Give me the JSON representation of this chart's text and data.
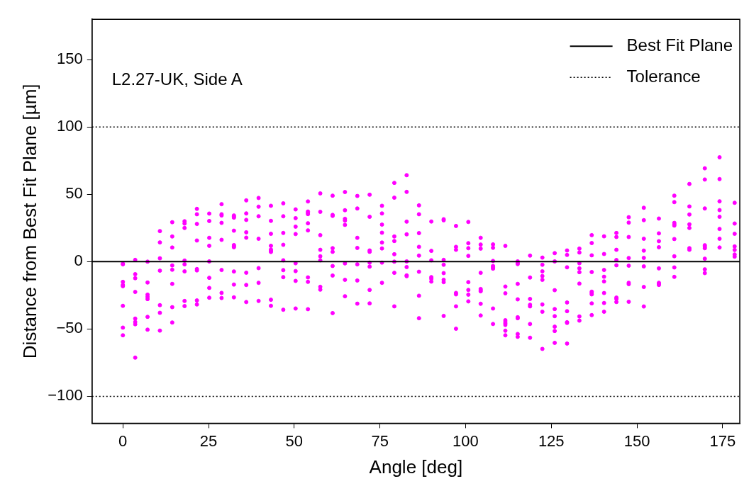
{
  "chart_data": {
    "type": "scatter",
    "xlabel": "Angle [deg]",
    "ylabel": "Distance from Best Fit Plane [µm]",
    "annotations": [
      "L2.27-UK, Side A"
    ],
    "xlim": [
      -9,
      180
    ],
    "xticks": [
      0,
      25,
      50,
      75,
      100,
      125,
      150,
      175
    ],
    "ylim": [
      -120,
      180
    ],
    "yticks": [
      {
        "value": -100,
        "label": "−100"
      },
      {
        "value": -50,
        "label": "−50"
      },
      0,
      50,
      100,
      150
    ],
    "grid": false,
    "legend": "top right",
    "marker": "circle",
    "ref_lines": [
      {
        "axis": "y",
        "value": 0,
        "label": "Best Fit Plane",
        "color": "#000000",
        "line_style": "solid"
      },
      {
        "axis": "y",
        "value": 100,
        "label": "Tolerance",
        "color": "#000000",
        "line_style": "dotted"
      },
      {
        "axis": "y",
        "value": -100,
        "color": "#000000",
        "line_style": "dotted"
      }
    ],
    "series": [
      {
        "color": "#ff00ff",
        "x": [
          0,
          0,
          0,
          0,
          0,
          0,
          0,
          0,
          3.6,
          3.6,
          3.6,
          3.6,
          3.6,
          3.6,
          3.6,
          3.6,
          7.2,
          7.2,
          7.2,
          7.2,
          7.2,
          7.2,
          7.2,
          10.8,
          10.8,
          10.8,
          10.8,
          10.8,
          10.8,
          10.8,
          14.4,
          14.4,
          14.4,
          14.4,
          14.4,
          14.4,
          14.4,
          14.4,
          18,
          18,
          18,
          18,
          18,
          18,
          18,
          18,
          21.6,
          21.6,
          21.6,
          21.6,
          21.6,
          21.6,
          21.6,
          21.6,
          25.2,
          25.2,
          25.2,
          25.2,
          25.2,
          25.2,
          25.2,
          25.2,
          28.8,
          28.8,
          28.8,
          28.8,
          28.8,
          28.8,
          28.8,
          28.8,
          32.4,
          32.4,
          32.4,
          32.4,
          32.4,
          32.4,
          32.4,
          32.4,
          32.4,
          32.4,
          36,
          36,
          36,
          36,
          36,
          36,
          36,
          36,
          39.6,
          39.6,
          39.6,
          39.6,
          39.6,
          39.6,
          39.6,
          43.2,
          43.2,
          43.2,
          43.2,
          43.2,
          43.2,
          43.2,
          43.2,
          43.2,
          46.8,
          46.8,
          46.8,
          46.8,
          46.8,
          46.8,
          46.8,
          46.8,
          50.4,
          50.4,
          50.4,
          50.4,
          50.4,
          50.4,
          50.4,
          50.4,
          54,
          54,
          54,
          54,
          54,
          54,
          54,
          54,
          54,
          57.6,
          57.6,
          57.6,
          57.6,
          57.6,
          57.6,
          57.6,
          57.6,
          61.2,
          61.2,
          61.2,
          61.2,
          61.2,
          61.2,
          61.2,
          61.2,
          64.8,
          64.8,
          64.8,
          64.8,
          64.8,
          64.8,
          64.8,
          64.8,
          68.4,
          68.4,
          68.4,
          68.4,
          68.4,
          68.4,
          68.4,
          72,
          72,
          72,
          72,
          72,
          72,
          72,
          72,
          75.6,
          75.6,
          75.6,
          75.6,
          75.6,
          75.6,
          75.6,
          75.6,
          79.2,
          79.2,
          79.2,
          79.2,
          79.2,
          79.2,
          79.2,
          79.2,
          82.8,
          82.8,
          82.8,
          82.8,
          82.8,
          82.8,
          82.8,
          82.8,
          86.4,
          86.4,
          86.4,
          86.4,
          86.4,
          86.4,
          86.4,
          86.4,
          90,
          90,
          90,
          90,
          90,
          90,
          93.6,
          93.6,
          93.6,
          93.6,
          93.6,
          93.6,
          93.6,
          93.6,
          97.2,
          97.2,
          97.2,
          97.2,
          97.2,
          97.2,
          97.2,
          100.8,
          100.8,
          100.8,
          100.8,
          100.8,
          100.8,
          100.8,
          100.8,
          104.4,
          104.4,
          104.4,
          104.4,
          104.4,
          104.4,
          104.4,
          104.4,
          104.4,
          108,
          108,
          108,
          108,
          108,
          108,
          108,
          108,
          111.6,
          111.6,
          111.6,
          111.6,
          111.6,
          111.6,
          111.6,
          111.6,
          111.6,
          115.2,
          115.2,
          115.2,
          115.2,
          115.2,
          115.2,
          115.2,
          115.2,
          115.2,
          118.8,
          118.8,
          118.8,
          118.8,
          118.8,
          118.8,
          118.8,
          122.4,
          122.4,
          122.4,
          122.4,
          122.4,
          122.4,
          122.4,
          122.4,
          126,
          126,
          126,
          126,
          126,
          126,
          126,
          126,
          129.6,
          129.6,
          129.6,
          129.6,
          129.6,
          129.6,
          129.6,
          129.6,
          133.2,
          133.2,
          133.2,
          133.2,
          133.2,
          133.2,
          133.2,
          133.2,
          136.8,
          136.8,
          136.8,
          136.8,
          136.8,
          136.8,
          136.8,
          136.8,
          136.8,
          140.4,
          140.4,
          140.4,
          140.4,
          140.4,
          140.4,
          140.4,
          140.4,
          144,
          144,
          144,
          144,
          144,
          144,
          144,
          144,
          147.6,
          147.6,
          147.6,
          147.6,
          147.6,
          147.6,
          147.6,
          147.6,
          152,
          152,
          152,
          152,
          152,
          152,
          152,
          152,
          156.4,
          156.4,
          156.4,
          156.4,
          156.4,
          156.4,
          156.4,
          156.4,
          160.9,
          160.9,
          160.9,
          160.9,
          160.9,
          160.9,
          160.9,
          160.9,
          160.9,
          165.3,
          165.3,
          165.3,
          165.3,
          165.3,
          165.3,
          165.3,
          169.8,
          169.8,
          169.8,
          169.8,
          169.8,
          169.8,
          169.8,
          169.8,
          169.8,
          174.1,
          174.1,
          174.1,
          174.1,
          174.1,
          174.1,
          174.1,
          174.1,
          178.5,
          178.5,
          178.5,
          178.5,
          178.5,
          178.5,
          178.5
        ],
        "values": [
          -1.5,
          -2,
          -15,
          -17.3,
          -18.2,
          -32.8,
          -49,
          -54.7,
          1.3,
          -9.3,
          -12.3,
          -22.5,
          -42.3,
          -44.8,
          -46.5,
          -71.3,
          0,
          -15.5,
          -24.5,
          -26.2,
          -27.8,
          -41,
          -50.5,
          22.7,
          14.3,
          2.5,
          -6.7,
          -32.3,
          -38,
          -51.2,
          29.3,
          18.7,
          10.5,
          -2.8,
          -6,
          -16.5,
          -33.8,
          -45.2,
          30,
          28.3,
          25,
          0.8,
          -2,
          -7.2,
          -29.2,
          -33,
          39.2,
          35.2,
          28,
          15.7,
          -5.5,
          -6.5,
          -28.8,
          -31.8,
          35.7,
          30.2,
          17.7,
          11.8,
          0.2,
          -12,
          -19.5,
          -26.8,
          42.7,
          35.2,
          34.3,
          28.8,
          16.2,
          -6.2,
          -23.2,
          -27,
          34.3,
          33.5,
          32.7,
          23,
          12.3,
          11.5,
          10.7,
          -7.3,
          -17,
          -26.5,
          45.5,
          35.8,
          31,
          21.8,
          17.8,
          -8.2,
          -17.3,
          -30,
          47.3,
          40.8,
          33.7,
          17,
          -4.8,
          -15.7,
          -29.2,
          41.5,
          30.3,
          20.7,
          11.8,
          9,
          8,
          7.2,
          -28.3,
          -32.8,
          43.3,
          33.7,
          21.3,
          12.5,
          1,
          -6.3,
          -11.5,
          -35.7,
          38.8,
          32.3,
          26,
          20.5,
          -1.2,
          -7,
          -14.3,
          -34.8,
          44.7,
          37.2,
          36.2,
          35.3,
          28.5,
          23.2,
          -11.7,
          -15,
          -35.3,
          50.7,
          37,
          19.7,
          8.8,
          4,
          1,
          -18.7,
          -20.8,
          49,
          34.7,
          34,
          10,
          7.3,
          -3.2,
          -10.3,
          -38.2,
          51.7,
          38.2,
          31.8,
          30.5,
          27.3,
          -1.3,
          -13.5,
          -25.7,
          48.8,
          39.5,
          17.7,
          10.2,
          -2,
          -14,
          -31.2,
          49.7,
          33.3,
          8.3,
          7.3,
          -0.7,
          -3.7,
          -21,
          -31,
          41.5,
          35.8,
          27.5,
          21.5,
          14.2,
          9.8,
          -0.7,
          -15.7,
          58.5,
          47.5,
          18.7,
          15.3,
          5.5,
          0,
          -8.3,
          -33.2,
          64.2,
          51.8,
          29.7,
          20.3,
          0.2,
          -4,
          -10.2,
          -10.8,
          41.8,
          35.2,
          21.2,
          11,
          4.5,
          -7.5,
          -25.3,
          -42,
          29.8,
          8,
          1,
          -11.5,
          -12.7,
          -14.8,
          31.5,
          30.7,
          1.3,
          -2.3,
          -8.5,
          -13.5,
          -15.2,
          -40.3,
          26.5,
          11,
          8.8,
          -23.2,
          -24.3,
          -33.2,
          -49.8,
          29.5,
          13.7,
          10,
          4.3,
          -15.2,
          -21,
          -24.5,
          -29.5,
          17.7,
          12.7,
          9.7,
          -8.3,
          -20.3,
          -21.2,
          -22,
          -31.3,
          -40,
          12.8,
          10.3,
          0.5,
          -3.2,
          -4.2,
          -5.2,
          -34.8,
          -46.3,
          11.7,
          -18.5,
          -23.5,
          -43.5,
          -44.7,
          -45.8,
          -47,
          -51.3,
          -54.7,
          0.2,
          -1,
          -1.8,
          -16.5,
          -28,
          -41.3,
          -42,
          -53.7,
          -55.8,
          4.5,
          -11.8,
          -27.7,
          -32,
          -33.2,
          -46.3,
          -56.5,
          3,
          -2.3,
          -7.2,
          -10.7,
          -13.5,
          -31.8,
          -37.2,
          -64.8,
          6.3,
          0.2,
          -21.2,
          -35.2,
          -40.5,
          -48.3,
          -51.5,
          -60.3,
          8.3,
          5,
          -4.2,
          -30.3,
          -36.8,
          -45,
          -45.5,
          -60.8,
          9.7,
          6.8,
          -1.2,
          -5,
          -7.8,
          -16.3,
          -40.7,
          -43.8,
          19.7,
          13.8,
          4.7,
          -7.7,
          -22.3,
          -23.3,
          -24.3,
          -31,
          -39.7,
          18.8,
          5.7,
          -6.2,
          -11.2,
          -14.7,
          -23.3,
          -30.7,
          -37.2,
          21.3,
          18.3,
          8.8,
          1.2,
          -2.7,
          -26.7,
          -27.7,
          -30,
          33,
          29,
          18.3,
          2.7,
          -3,
          -15.7,
          -16.7,
          -29.8,
          40,
          30.8,
          17,
          8.2,
          2.8,
          -3.5,
          -18.8,
          -33.3,
          32,
          21,
          15.2,
          10.7,
          -5,
          -15.7,
          -16.5,
          -17.3,
          49,
          44.2,
          28.8,
          27.8,
          26.8,
          16.8,
          4,
          -4.3,
          -11.3,
          57.7,
          41,
          35,
          27.7,
          25,
          10,
          8.8,
          69.3,
          61,
          39.5,
          12.2,
          11,
          10,
          2.2,
          -5.7,
          -8.5,
          77.5,
          61.3,
          44.8,
          38.3,
          33.3,
          24.3,
          17,
          10.5,
          43.7,
          28.3,
          20.7,
          11.3,
          8.7,
          5.3,
          3.7
        ]
      }
    ]
  }
}
